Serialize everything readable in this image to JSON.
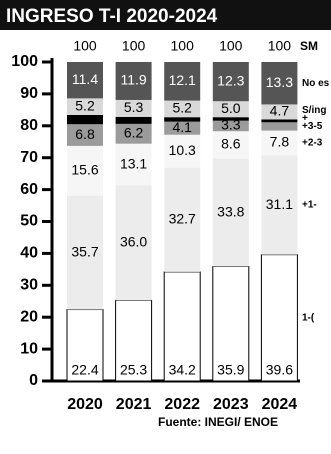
{
  "chart_data": {
    "type": "stacked_bar",
    "title": "INGRESO T-I 2020-2024",
    "source": "Fuente: INEGI/ ENOE",
    "totals_label": "SM",
    "categories": [
      "2020",
      "2021",
      "2022",
      "2023",
      "2024"
    ],
    "totals": [
      100,
      100,
      100,
      100,
      100
    ],
    "ylim": [
      0,
      100
    ],
    "yticks": [
      0,
      10,
      20,
      30,
      40,
      50,
      60,
      70,
      80,
      90,
      100
    ],
    "series": [
      {
        "name": "1-(",
        "color": "#ffffff",
        "text_color": "#000000",
        "values": [
          22.4,
          25.3,
          34.2,
          35.9,
          39.6
        ],
        "value_labels": [
          "22.4",
          "25.3",
          "34.2",
          "35.9",
          "39.6"
        ]
      },
      {
        "name": "+1-",
        "color": "#ececec",
        "text_color": "#000000",
        "values": [
          35.7,
          36.0,
          32.7,
          33.8,
          31.1
        ],
        "value_labels": [
          "35.7",
          "36.0",
          "32.7",
          "33.8",
          "31.1"
        ]
      },
      {
        "name": "+2-3",
        "color": "#f6f6f6",
        "text_color": "#000000",
        "values": [
          15.6,
          13.1,
          10.3,
          8.6,
          7.8
        ],
        "value_labels": [
          "15.6",
          "13.1",
          "10.3",
          "8.6",
          "7.8"
        ]
      },
      {
        "name": "+3-5",
        "color": "#9b9b9b",
        "text_color": "#000000",
        "values": [
          6.8,
          6.2,
          4.1,
          3.3,
          2.6
        ],
        "value_labels": [
          "6.8",
          "6.2",
          "4.1",
          "3.3",
          null
        ]
      },
      {
        "name": "+",
        "color": "#000000",
        "text_color": "#ffffff",
        "values": [
          2.9,
          2.2,
          1.4,
          1.1,
          0.9
        ],
        "value_labels": [
          null,
          null,
          null,
          null,
          null
        ]
      },
      {
        "name": "S/ing",
        "color": "#d9d9d9",
        "text_color": "#000000",
        "values": [
          5.2,
          5.3,
          5.2,
          5.0,
          4.7
        ],
        "value_labels": [
          "5.2",
          "5.3",
          "5.2",
          "5.0",
          "4.7"
        ]
      },
      {
        "name": "No es",
        "color": "#555555",
        "text_color": "#ffffff",
        "values": [
          11.4,
          11.9,
          12.1,
          12.3,
          13.3
        ],
        "value_labels": [
          "11.4",
          "11.9",
          "12.1",
          "12.3",
          "13.3"
        ]
      }
    ]
  }
}
